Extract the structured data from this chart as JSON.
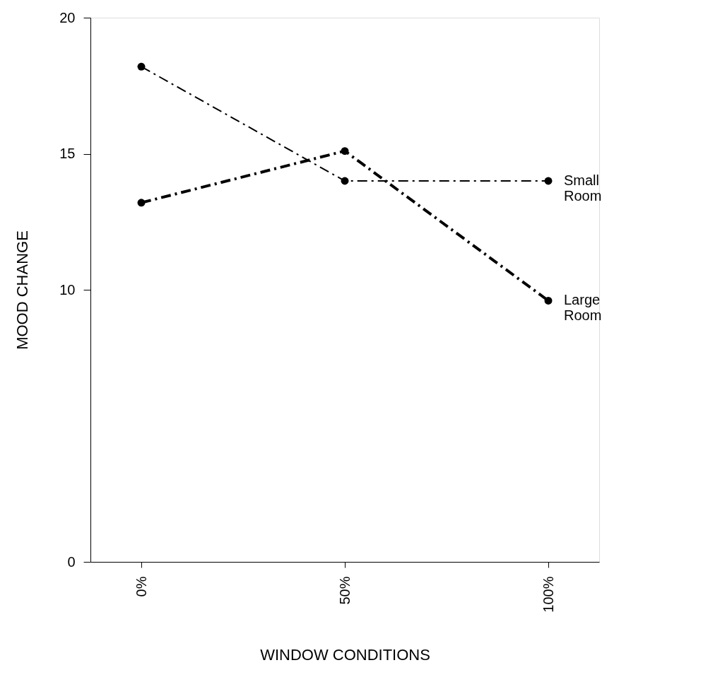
{
  "chart_data": {
    "type": "line",
    "xlabel": "WINDOW CONDITIONS",
    "ylabel": "MOOD CHANGE",
    "categories": [
      "0%",
      "50%",
      "100%"
    ],
    "series": [
      {
        "name": "Small Room",
        "color": "#000000",
        "values": [
          18.2,
          14.0,
          14.0
        ]
      },
      {
        "name": "Large Room",
        "color": "#000000",
        "values": [
          13.2,
          15.1,
          9.6
        ]
      }
    ],
    "ylim": [
      0,
      20
    ],
    "yticks": [
      0,
      10,
      15,
      20
    ],
    "grid": false,
    "legend": false,
    "marker": "circle",
    "line_style": "dashed"
  }
}
